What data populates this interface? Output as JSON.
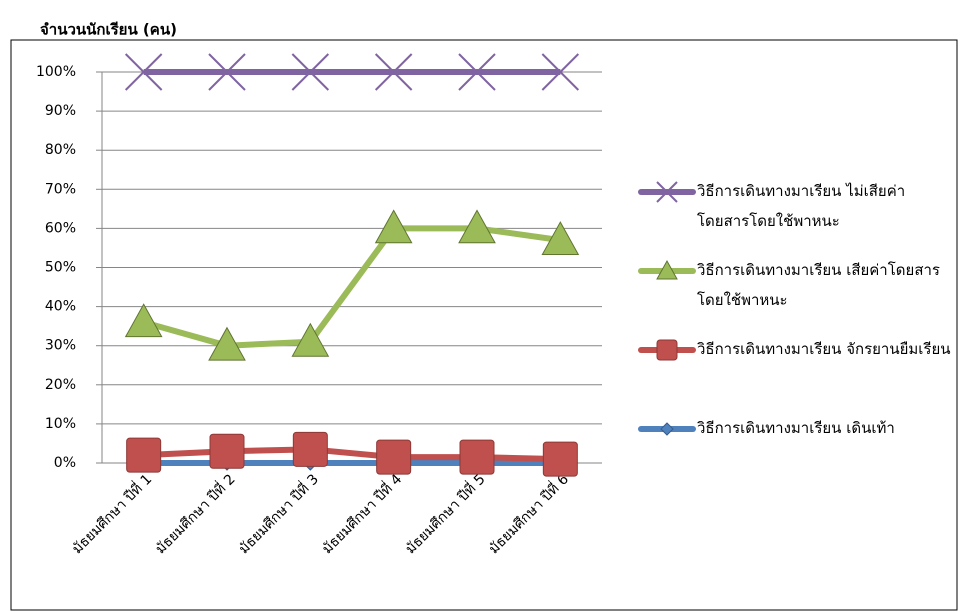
{
  "chart_data": {
    "type": "line",
    "title": "จำนวนนักเรียน (คน)",
    "categories": [
      "มัธยมศึกษา ปีที่ 1",
      "มัธยมศึกษา ปีที่ 2",
      "มัธยมศึกษา ปีที่ 3",
      "มัธยมศึกษา ปีที่ 4",
      "มัธยมศึกษา ปีที่ 5",
      "มัธยมศึกษา ปีที่ 6"
    ],
    "series": [
      {
        "name": "วิธีการเดินทางมาเรียน ไม่เสียค่าโดยสารโดยใช้พาหนะ",
        "color": "#8064a2",
        "marker": "x",
        "values": [
          100,
          100,
          100,
          100,
          100,
          100
        ]
      },
      {
        "name": "วิธีการเดินทางมาเรียน เสียค่าโดยสารโดยใช้พาหนะ",
        "color": "#9bbb59",
        "marker": "triangle",
        "values": [
          36,
          30,
          31,
          60,
          60,
          57
        ]
      },
      {
        "name": "วิธีการเดินทางมาเรียน จักรยานยืมเรียน",
        "color": "#c0504d",
        "marker": "square",
        "values": [
          2,
          3,
          3.5,
          1.5,
          1.5,
          1
        ]
      },
      {
        "name": "วิธีการเดินทางมาเรียน เดินเท้า",
        "color": "#4f81bd",
        "marker": "diamond",
        "values": [
          0,
          0,
          0,
          0,
          0,
          0
        ]
      }
    ],
    "ylim": [
      0,
      100
    ],
    "yticks": [
      {
        "value": 0,
        "label": "0%"
      },
      {
        "value": 10,
        "label": "10%"
      },
      {
        "value": 20,
        "label": "20%"
      },
      {
        "value": 30,
        "label": "30%"
      },
      {
        "value": 40,
        "label": "40%"
      },
      {
        "value": 50,
        "label": "50%"
      },
      {
        "value": 60,
        "label": "60%"
      },
      {
        "value": 70,
        "label": "70%"
      },
      {
        "value": 80,
        "label": "80%"
      },
      {
        "value": 90,
        "label": "90%"
      },
      {
        "value": 100,
        "label": "100%"
      }
    ],
    "grid": true,
    "legend": "right"
  }
}
